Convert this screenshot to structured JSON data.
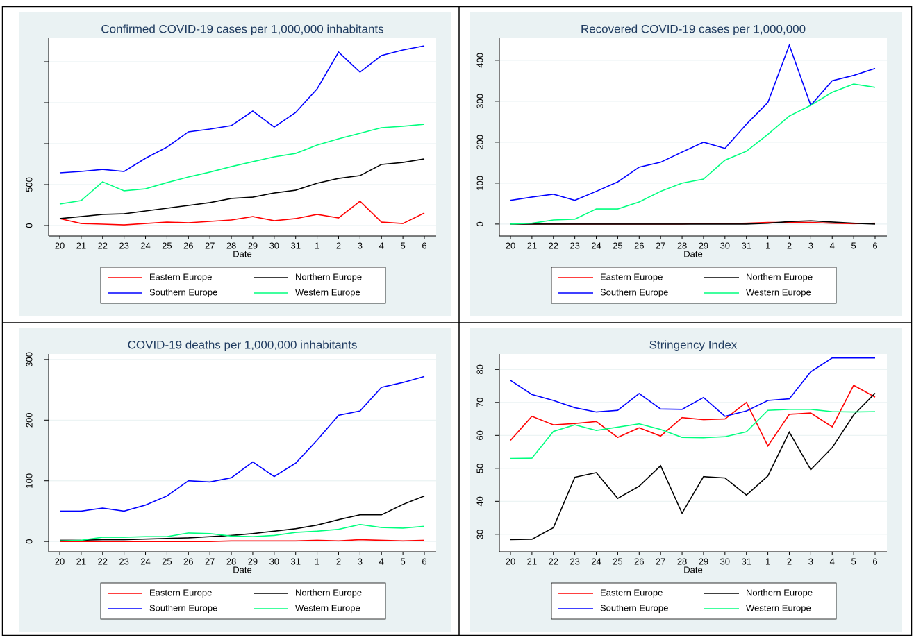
{
  "chart_data": [
    {
      "type": "line",
      "title": "Confirmed COVID-19 cases per 1,000,000 inhabitants",
      "xlabel": "Date",
      "categories": [
        "20",
        "21",
        "22",
        "23",
        "24",
        "25",
        "26",
        "27",
        "28",
        "29",
        "30",
        "31",
        "1",
        "2",
        "3",
        "4",
        "5",
        "6"
      ],
      "ylim": [
        -127,
        2288
      ],
      "yticks": [
        0,
        500,
        {
          "value": 1000,
          "label": null
        },
        {
          "value": 1500,
          "label": null
        },
        {
          "value": 2000,
          "label": null
        }
      ],
      "grid": true,
      "series": [
        {
          "name": "Eastern Europe",
          "color": "#ff0000",
          "values": [
            85,
            25,
            17,
            8,
            25,
            42,
            34,
            51,
            68,
            110,
            59,
            85,
            136,
            93,
            297,
            42,
            25,
            153
          ]
        },
        {
          "name": "Northern Europe",
          "color": "#000000",
          "values": [
            85,
            110,
            136,
            144,
            178,
            212,
            246,
            280,
            331,
            347,
            398,
            432,
            517,
            576,
            610,
            746,
            771,
            814
          ]
        },
        {
          "name": "Southern Europe",
          "color": "#0000ff",
          "values": [
            644,
            661,
            686,
            661,
            822,
            958,
            1144,
            1178,
            1220,
            1398,
            1203,
            1381,
            1669,
            2118,
            1873,
            2076,
            2144,
            2195
          ]
        },
        {
          "name": "Western Europe",
          "color": "#00ff7f",
          "values": [
            263,
            305,
            534,
            424,
            449,
            525,
            593,
            653,
            720,
            780,
            839,
            881,
            983,
            1059,
            1127,
            1195,
            1212,
            1237
          ]
        }
      ]
    },
    {
      "type": "line",
      "title": "Recovered COVID-19 cases per 1,000,000",
      "xlabel": "Date",
      "categories": [
        "20",
        "21",
        "22",
        "23",
        "24",
        "25",
        "26",
        "27",
        "28",
        "29",
        "30",
        "31",
        "1",
        "2",
        "3",
        "4",
        "5",
        "6"
      ],
      "ylim": [
        -29,
        454
      ],
      "yticks": [
        0,
        100,
        200,
        300,
        400
      ],
      "grid": true,
      "series": [
        {
          "name": "Eastern Europe",
          "color": "#ff0000",
          "values": [
            0,
            0,
            0,
            0,
            0,
            0,
            0,
            0,
            0,
            1,
            1,
            2,
            4,
            4,
            4,
            2,
            1,
            2
          ]
        },
        {
          "name": "Northern Europe",
          "color": "#000000",
          "values": [
            0,
            0,
            0,
            0,
            0,
            0,
            0,
            0,
            0,
            0,
            0,
            0,
            2,
            6,
            8,
            5,
            2,
            0
          ]
        },
        {
          "name": "Southern Europe",
          "color": "#0000ff",
          "values": [
            58,
            66,
            73,
            58,
            80,
            103,
            139,
            151,
            176,
            200,
            185,
            244,
            297,
            437,
            290,
            350,
            363,
            380
          ]
        },
        {
          "name": "Western Europe",
          "color": "#00ff7f",
          "values": [
            0,
            2,
            10,
            12,
            37,
            37,
            54,
            80,
            100,
            110,
            156,
            178,
            219,
            264,
            290,
            322,
            342,
            334
          ]
        }
      ]
    },
    {
      "type": "line",
      "title": "COVID-19 deaths per 1,000,000 inhabitants",
      "xlabel": "Date",
      "categories": [
        "20",
        "21",
        "22",
        "23",
        "24",
        "25",
        "26",
        "27",
        "28",
        "29",
        "30",
        "31",
        "1",
        "2",
        "3",
        "4",
        "5",
        "6"
      ],
      "ylim": [
        -17,
        309
      ],
      "yticks": [
        0,
        100,
        200,
        300
      ],
      "grid": true,
      "series": [
        {
          "name": "Eastern Europe",
          "color": "#ff0000",
          "values": [
            0,
            0,
            0,
            0,
            0,
            0,
            0,
            0,
            1,
            1,
            1,
            1,
            2,
            1,
            3,
            2,
            1,
            2
          ]
        },
        {
          "name": "Northern Europe",
          "color": "#000000",
          "values": [
            2,
            2,
            3,
            3,
            4,
            5,
            6,
            8,
            10,
            13,
            17,
            21,
            27,
            36,
            44,
            44,
            61,
            75
          ]
        },
        {
          "name": "Southern Europe",
          "color": "#0000ff",
          "values": [
            50,
            50,
            55,
            50,
            60,
            75,
            100,
            98,
            105,
            131,
            107,
            129,
            167,
            208,
            215,
            254,
            262,
            272
          ]
        },
        {
          "name": "Western Europe",
          "color": "#00ff7f",
          "values": [
            1,
            2,
            7,
            7,
            8,
            8,
            14,
            13,
            9,
            8,
            10,
            15,
            17,
            20,
            28,
            23,
            22,
            25
          ]
        }
      ]
    },
    {
      "type": "line",
      "title": "Stringency Index",
      "xlabel": "Date",
      "categories": [
        "20",
        "21",
        "22",
        "23",
        "24",
        "25",
        "26",
        "27",
        "28",
        "29",
        "30",
        "31",
        "1",
        "2",
        "3",
        "4",
        "5",
        "6"
      ],
      "ylim": [
        24.7,
        84.7
      ],
      "yticks": [
        30,
        40,
        50,
        60,
        70,
        80
      ],
      "grid": true,
      "series": [
        {
          "name": "Eastern Europe",
          "color": "#ff0000",
          "values": [
            58.5,
            65.8,
            63.2,
            63.6,
            64.2,
            59.4,
            62.3,
            59.8,
            65.4,
            64.8,
            65.0,
            70.0,
            56.8,
            66.4,
            66.8,
            62.6,
            75.2,
            71.6
          ]
        },
        {
          "name": "Northern Europe",
          "color": "#000000",
          "values": [
            28.4,
            28.5,
            32,
            47.3,
            48.7,
            40.9,
            44.6,
            50.8,
            36.4,
            47.5,
            47.1,
            41.9,
            47.7,
            61,
            49.6,
            56.3,
            66.2,
            72.8
          ]
        },
        {
          "name": "Southern Europe",
          "color": "#0000ff",
          "values": [
            76.7,
            72.4,
            70.6,
            68.4,
            67.1,
            67.6,
            72.7,
            68,
            67.9,
            71.5,
            65.8,
            67.4,
            70.6,
            71.1,
            79.3,
            83.5,
            83.5,
            83.5
          ]
        },
        {
          "name": "Western Europe",
          "color": "#00ff7f",
          "values": [
            53,
            53.1,
            61.2,
            63.2,
            61.5,
            62.5,
            63.5,
            61.8,
            59.4,
            59.3,
            59.6,
            61.1,
            67.6,
            67.9,
            67.9,
            67.2,
            67.1,
            67.2
          ]
        }
      ]
    }
  ]
}
